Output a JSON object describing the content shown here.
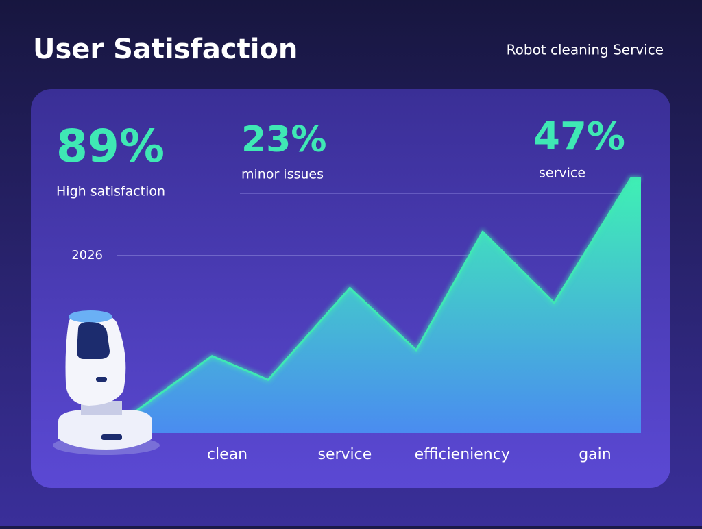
{
  "header": {
    "title": "User Satisfaction",
    "subtitle": "Robot cleaning Service"
  },
  "stats": [
    {
      "value": "89%",
      "label": "High satisfaction"
    },
    {
      "value": "23%",
      "label": "minor issues"
    },
    {
      "value": "47%",
      "label": "service"
    }
  ],
  "chart_data": {
    "type": "area",
    "x": [
      0,
      16,
      27,
      43,
      56,
      69,
      83,
      98,
      100
    ],
    "values": [
      6,
      26,
      18,
      49,
      28,
      68,
      44,
      86,
      86
    ],
    "xlim": [
      0,
      100
    ],
    "ylim": [
      0,
      100
    ],
    "xticks": [
      {
        "value": 19,
        "label": "clean"
      },
      {
        "value": 42,
        "label": "service"
      },
      {
        "value": 65,
        "label": "efficieniency"
      },
      {
        "value": 91,
        "label": "gain"
      }
    ],
    "yticks": [
      {
        "value": 60,
        "label": "2026"
      }
    ],
    "grid": true,
    "color": "#3fe8b4"
  }
}
